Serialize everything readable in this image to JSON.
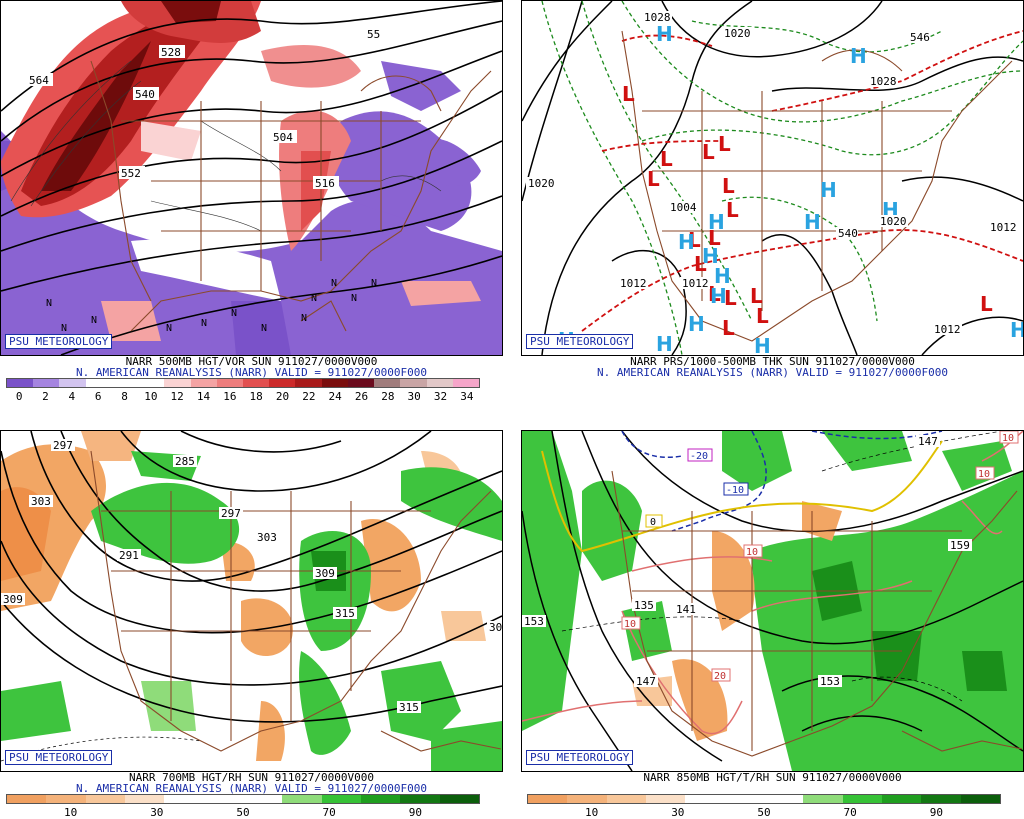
{
  "panels": [
    {
      "id": "vor500",
      "badge": "PSU METEOROLOGY",
      "line1": "NARR 500MB HGT/VOR SUN 911027/0000V000",
      "line2": "N. AMERICAN REANALYSIS (NARR) VALID = 911027/0000F000",
      "contour_labels": [
        "564",
        "528",
        "540",
        "552",
        "504",
        "516",
        "55"
      ],
      "colorbar": {
        "colors": [
          "#7a52c9",
          "#a584e0",
          "#d2c4ef",
          "#ffffff",
          "#ffffff",
          "#ffffff",
          "#fad3d3",
          "#f4a3a3",
          "#ee7d7d",
          "#e24f4f",
          "#cc2a2a",
          "#a81a1a",
          "#7a0d0d",
          "#6b0b1d",
          "#a07c7c",
          "#c9a5a5",
          "#e2c8c8",
          "#f5a5c9"
        ],
        "ticks": [
          "0",
          "2",
          "4",
          "6",
          "8",
          "10",
          "12",
          "14",
          "16",
          "18",
          "20",
          "22",
          "24",
          "26",
          "28",
          "30",
          "32",
          "34"
        ]
      }
    },
    {
      "id": "prs",
      "badge": "PSU METEOROLOGY",
      "line1": "NARR PRS/1000-500MB THK SUN 911027/0000V000",
      "line2": "N. AMERICAN REANALYSIS (NARR) VALID = 911027/0000F000",
      "contour_labels": [
        "1028",
        "1020",
        "1020",
        "1012",
        "1004",
        "1012",
        "1028",
        "1020",
        "546",
        "540",
        "1012",
        "1012"
      ]
    },
    {
      "id": "rh700",
      "badge": "PSU METEOROLOGY",
      "line1": "NARR 700MB HGT/RH SUN 911027/0000V000",
      "line2": "N. AMERICAN REANALYSIS (NARR) VALID = 911027/0000F000",
      "contour_labels": [
        "297",
        "285",
        "303",
        "297",
        "303",
        "291",
        "309",
        "309",
        "315",
        "315",
        "30"
      ],
      "colorbar": {
        "colors": [
          "#f0a060",
          "#f4b27a",
          "#f8c79a",
          "#fbe0c8",
          "#ffffff",
          "#ffffff",
          "#ffffff",
          "#8fdc7a",
          "#36c236",
          "#1f9e1f",
          "#137813",
          "#0b5e0b"
        ],
        "ticks": [
          "10",
          "30",
          "50",
          "70",
          "90"
        ]
      }
    },
    {
      "id": "t850",
      "badge": "PSU METEOROLOGY",
      "line1": "NARR 850MB HGT/T/RH SUN 911027/0000V000",
      "line2": "",
      "contour_labels": [
        "147",
        "159",
        "153",
        "141",
        "135",
        "153",
        "147",
        "-20",
        "-10",
        "10",
        "10",
        "10",
        "20",
        "10",
        "0"
      ],
      "colorbar": {
        "colors": [
          "#f0a060",
          "#f4b27a",
          "#f8c79a",
          "#fbe0c8",
          "#ffffff",
          "#ffffff",
          "#ffffff",
          "#8fdc7a",
          "#36c236",
          "#1f9e1f",
          "#137813",
          "#0b5e0b"
        ],
        "ticks": [
          "10",
          "30",
          "50",
          "70",
          "90"
        ]
      }
    }
  ]
}
